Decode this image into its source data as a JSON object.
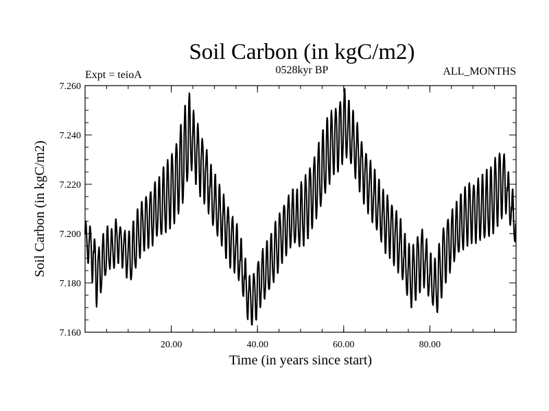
{
  "chart_data": {
    "type": "line",
    "title": "Soil Carbon (in kgC/m2)",
    "subtitle_left": "Expt = teioA",
    "subtitle_center": "0528kyr BP",
    "subtitle_right": "ALL_MONTHS",
    "xlabel": "Time (in years since start)",
    "ylabel": "Soil Carbon (in kgC/m2)",
    "xlim": [
      0,
      100
    ],
    "ylim": [
      7.16,
      7.26
    ],
    "x_ticks": [
      20,
      40,
      60,
      80
    ],
    "x_tick_labels": [
      "20.00",
      "40.00",
      "60.00",
      "80.00"
    ],
    "y_ticks": [
      7.16,
      7.18,
      7.2,
      7.22,
      7.24,
      7.26
    ],
    "y_tick_labels": [
      "7.160",
      "7.180",
      "7.200",
      "7.220",
      "7.240",
      "7.260"
    ],
    "grid": false,
    "series": [
      {
        "name": "Soil Carbon",
        "sampling": "monthly; oscillates with an annual cycle between the listed minimum and maximum around the listed mean",
        "years": [
          0,
          1,
          2,
          3,
          4,
          5,
          6,
          7,
          8,
          9,
          10,
          11,
          12,
          13,
          14,
          15,
          16,
          17,
          18,
          19,
          20,
          21,
          22,
          23,
          24,
          25,
          26,
          27,
          28,
          29,
          30,
          31,
          32,
          33,
          34,
          35,
          36,
          37,
          38,
          39,
          40,
          41,
          42,
          43,
          44,
          45,
          46,
          47,
          48,
          49,
          50,
          51,
          52,
          53,
          54,
          55,
          56,
          57,
          58,
          59,
          60,
          61,
          62,
          63,
          64,
          65,
          66,
          67,
          68,
          69,
          70,
          71,
          72,
          73,
          74,
          75,
          76,
          77,
          78,
          79,
          80,
          81,
          82,
          83,
          84,
          85,
          86,
          87,
          88,
          89,
          90,
          91,
          92,
          93,
          94,
          95,
          96,
          97,
          98,
          99
        ],
        "annual_mean": [
          7.196,
          7.195,
          7.188,
          7.185,
          7.19,
          7.194,
          7.193,
          7.197,
          7.195,
          7.192,
          7.191,
          7.195,
          7.2,
          7.203,
          7.205,
          7.207,
          7.21,
          7.211,
          7.214,
          7.216,
          7.219,
          7.223,
          7.228,
          7.235,
          7.24,
          7.235,
          7.23,
          7.226,
          7.221,
          7.215,
          7.211,
          7.207,
          7.203,
          7.199,
          7.196,
          7.192,
          7.186,
          7.178,
          7.172,
          7.174,
          7.18,
          7.183,
          7.186,
          7.19,
          7.194,
          7.198,
          7.202,
          7.205,
          7.206,
          7.206,
          7.208,
          7.211,
          7.215,
          7.219,
          7.223,
          7.229,
          7.233,
          7.236,
          7.238,
          7.241,
          7.244,
          7.24,
          7.236,
          7.231,
          7.225,
          7.221,
          7.217,
          7.213,
          7.209,
          7.205,
          7.203,
          7.2,
          7.197,
          7.193,
          7.187,
          7.182,
          7.183,
          7.188,
          7.19,
          7.185,
          7.18,
          7.178,
          7.185,
          7.192,
          7.196,
          7.199,
          7.202,
          7.205,
          7.207,
          7.209,
          7.209,
          7.21,
          7.21,
          7.212,
          7.213,
          7.217,
          7.22,
          7.221,
          7.214,
          7.206
        ],
        "annual_min": [
          7.188,
          7.18,
          7.17,
          7.176,
          7.182,
          7.185,
          7.186,
          7.188,
          7.186,
          7.182,
          7.18,
          7.185,
          7.19,
          7.193,
          7.194,
          7.195,
          7.198,
          7.198,
          7.2,
          7.202,
          7.204,
          7.208,
          7.212,
          7.22,
          7.225,
          7.22,
          7.215,
          7.212,
          7.208,
          7.202,
          7.198,
          7.195,
          7.19,
          7.186,
          7.184,
          7.18,
          7.173,
          7.165,
          7.163,
          7.165,
          7.17,
          7.173,
          7.176,
          7.18,
          7.184,
          7.188,
          7.191,
          7.194,
          7.195,
          7.194,
          7.195,
          7.198,
          7.202,
          7.206,
          7.21,
          7.215,
          7.22,
          7.224,
          7.225,
          7.228,
          7.23,
          7.227,
          7.222,
          7.217,
          7.212,
          7.208,
          7.204,
          7.2,
          7.196,
          7.192,
          7.19,
          7.187,
          7.184,
          7.18,
          7.174,
          7.17,
          7.173,
          7.176,
          7.178,
          7.174,
          7.17,
          7.168,
          7.174,
          7.18,
          7.184,
          7.188,
          7.191,
          7.193,
          7.195,
          7.196,
          7.196,
          7.197,
          7.197,
          7.198,
          7.2,
          7.203,
          7.206,
          7.208,
          7.202,
          7.196
        ],
        "annual_max": [
          7.205,
          7.203,
          7.198,
          7.195,
          7.2,
          7.203,
          7.202,
          7.206,
          7.204,
          7.202,
          7.201,
          7.205,
          7.21,
          7.213,
          7.216,
          7.218,
          7.221,
          7.223,
          7.227,
          7.23,
          7.233,
          7.238,
          7.245,
          7.252,
          7.257,
          7.25,
          7.245,
          7.24,
          7.235,
          7.228,
          7.224,
          7.22,
          7.216,
          7.212,
          7.208,
          7.204,
          7.198,
          7.19,
          7.183,
          7.185,
          7.19,
          7.194,
          7.197,
          7.2,
          7.205,
          7.209,
          7.213,
          7.216,
          7.218,
          7.218,
          7.221,
          7.224,
          7.228,
          7.232,
          7.237,
          7.242,
          7.247,
          7.25,
          7.252,
          7.255,
          7.259,
          7.254,
          7.25,
          7.245,
          7.238,
          7.234,
          7.23,
          7.226,
          7.222,
          7.218,
          7.216,
          7.213,
          7.21,
          7.206,
          7.2,
          7.196,
          7.196,
          7.2,
          7.203,
          7.198,
          7.192,
          7.19,
          7.196,
          7.203,
          7.207,
          7.21,
          7.213,
          7.216,
          7.219,
          7.221,
          7.221,
          7.223,
          7.224,
          7.226,
          7.227,
          7.231,
          7.234,
          7.233,
          7.225,
          7.218
        ]
      }
    ]
  }
}
